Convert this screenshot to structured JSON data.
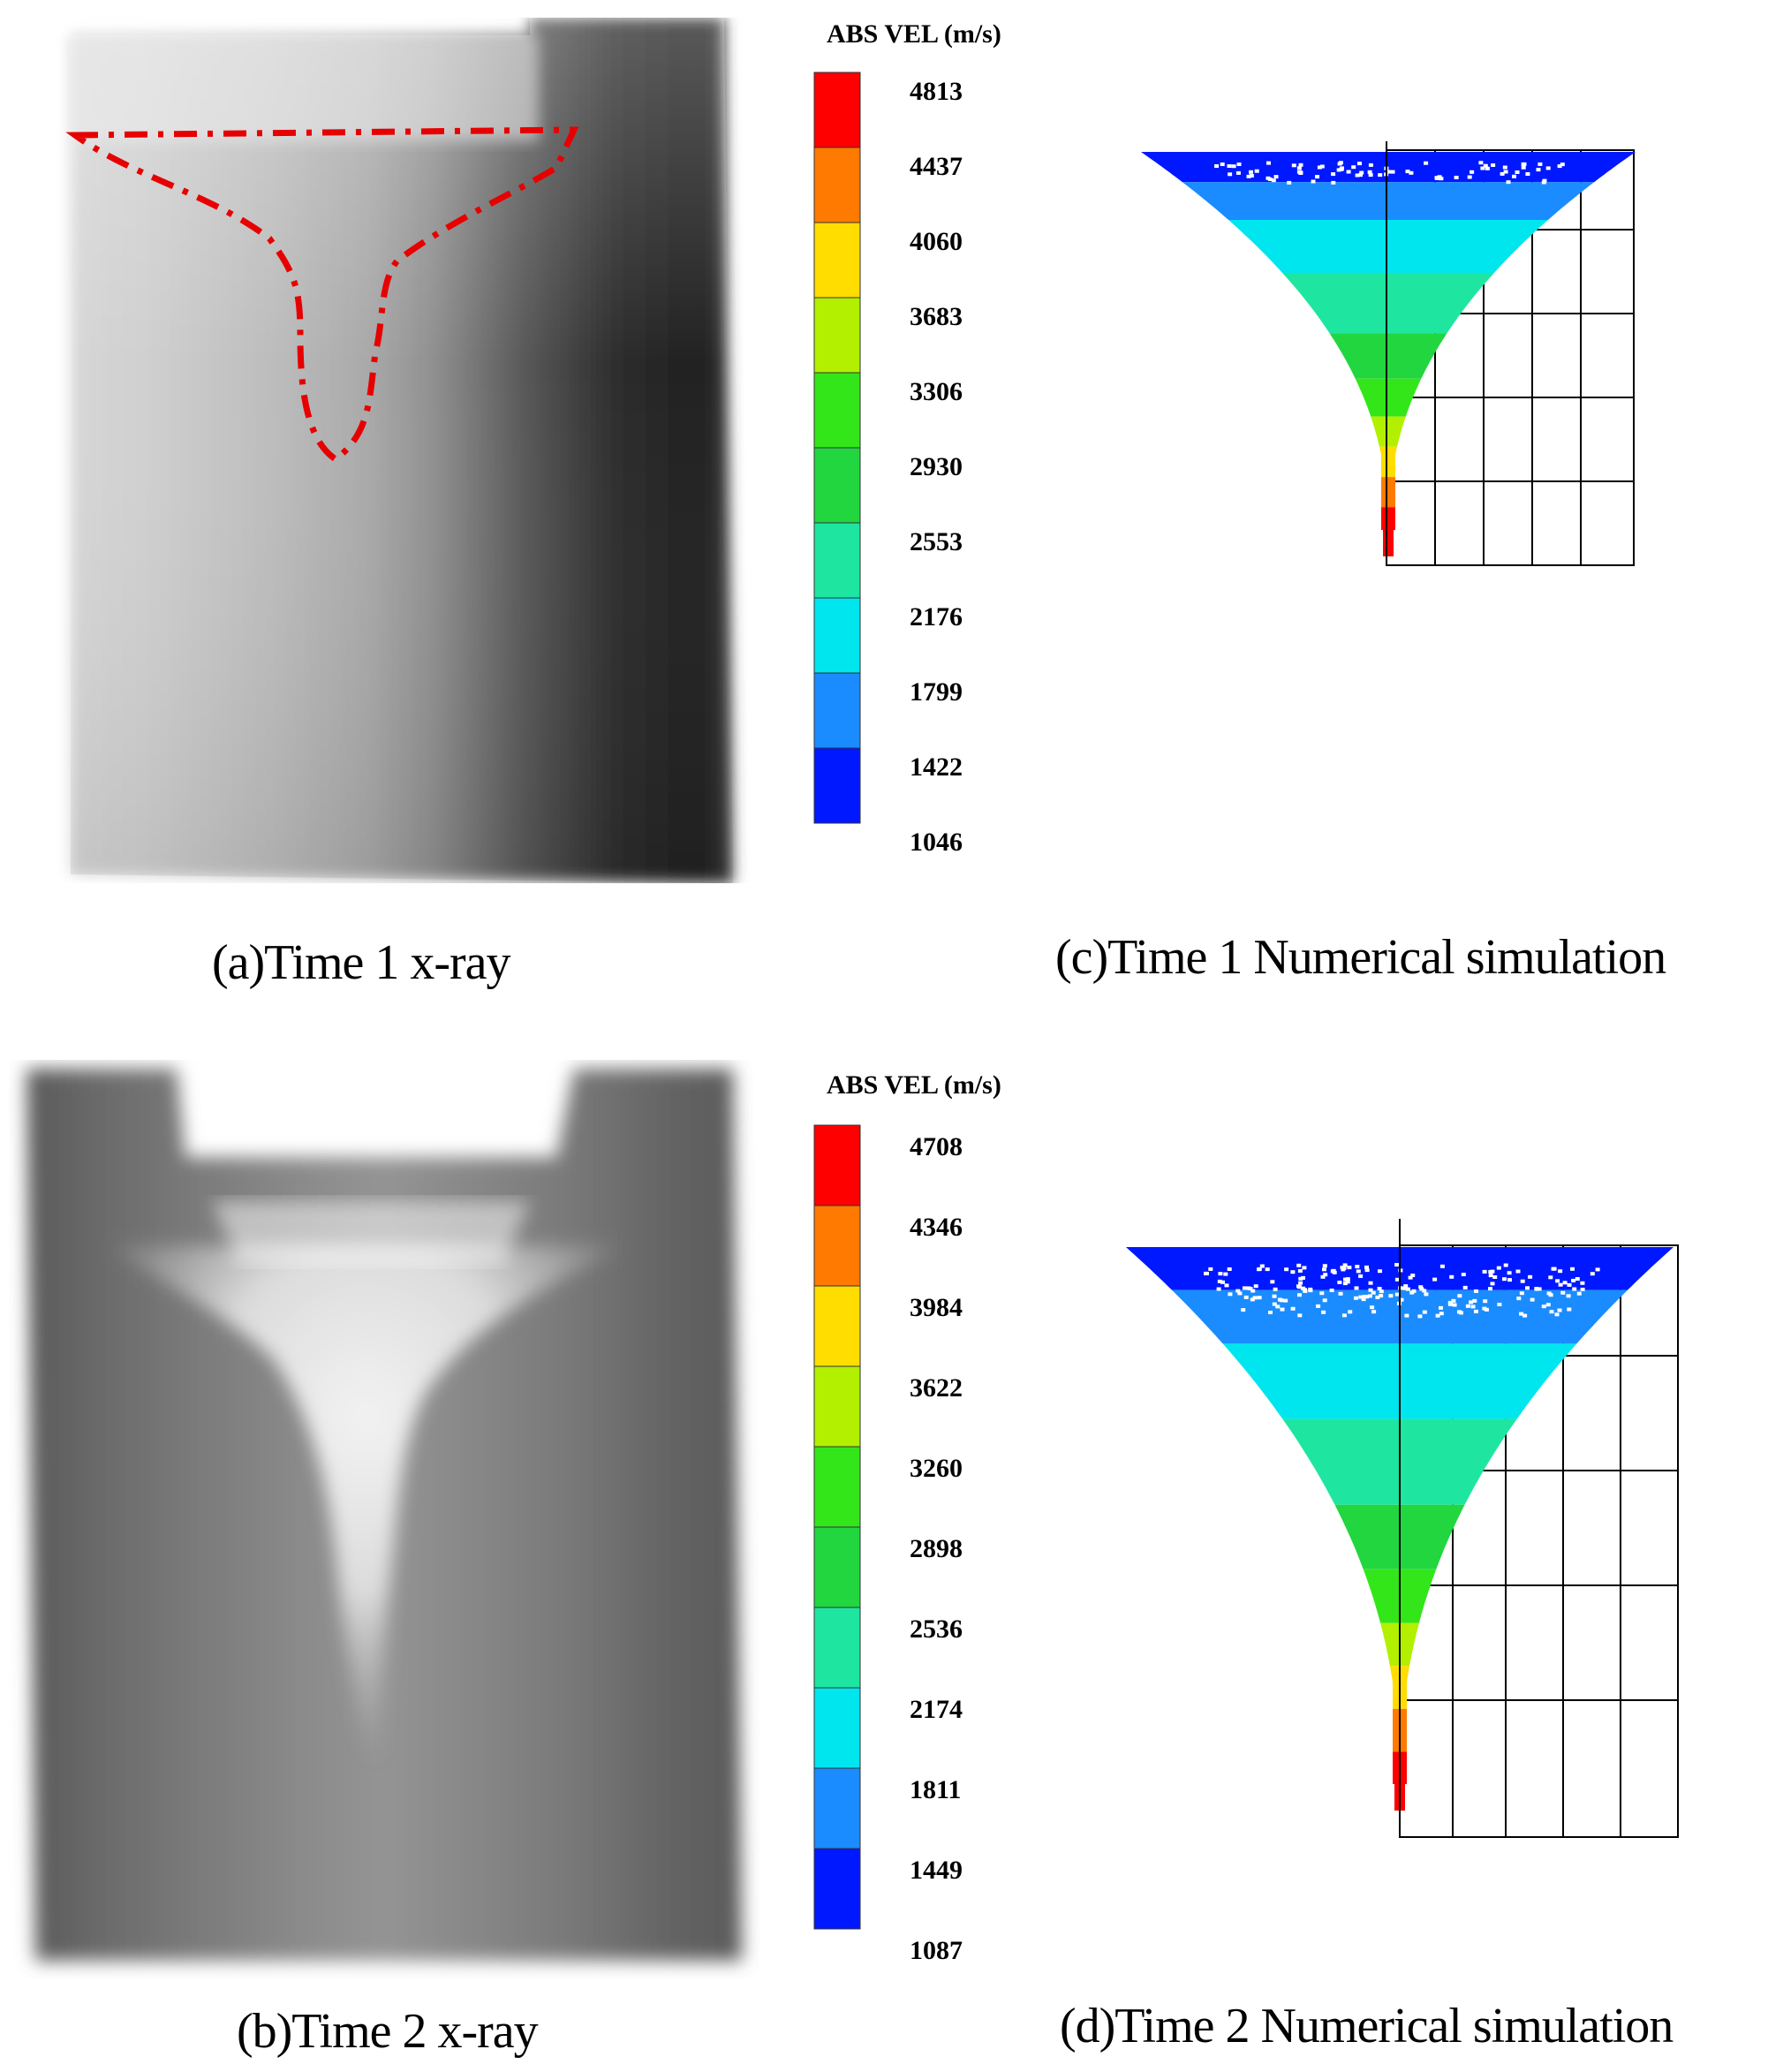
{
  "figure": {
    "panels": [
      {
        "id": "a",
        "caption": "(a)Time  1 x-ray"
      },
      {
        "id": "b",
        "caption": "(b)Time  2 x-ray"
      },
      {
        "id": "c",
        "caption": "(c)Time  1 Numerical  simulation"
      },
      {
        "id": "d",
        "caption": "(d)Time  2 Numerical  simulation"
      }
    ],
    "colorbars": [
      {
        "title": "ABS VEL (m/s)",
        "labels": [
          "4813",
          "4437",
          "4060",
          "3683",
          "3306",
          "2930",
          "2553",
          "2176",
          "1799",
          "1422",
          "1046"
        ]
      },
      {
        "title": "ABS VEL (m/s)",
        "labels": [
          "4708",
          "4346",
          "3984",
          "3622",
          "3260",
          "2898",
          "2536",
          "2174",
          "1811",
          "1449",
          "1087"
        ]
      }
    ],
    "colors": [
      "#ff0000",
      "#ff7a00",
      "#ffdd00",
      "#b2f000",
      "#33e61a",
      "#22d640",
      "#1ee6a0",
      "#00e6ee",
      "#1a8cff",
      "#0018ff"
    ],
    "overlay_color": "#e60000"
  }
}
